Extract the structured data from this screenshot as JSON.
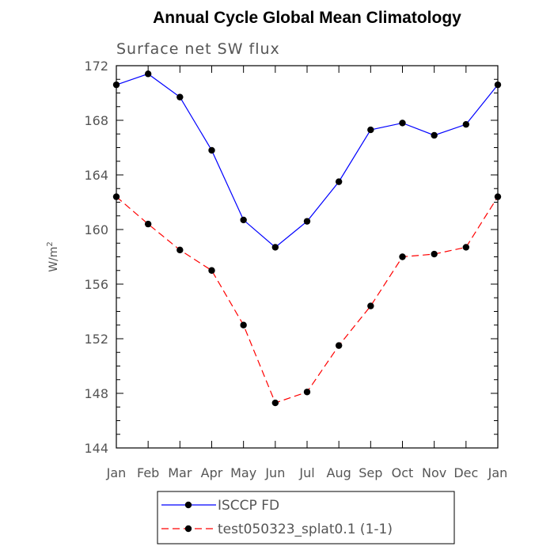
{
  "chart_data": {
    "type": "line",
    "title": "Annual Cycle Global Mean Climatology",
    "subtitle": "Surface net SW flux",
    "ylabel": "W/m",
    "ylabel_sup": "2",
    "xlabel": "",
    "categories": [
      "Jan",
      "Feb",
      "Mar",
      "Apr",
      "May",
      "Jun",
      "Jul",
      "Aug",
      "Sep",
      "Oct",
      "Nov",
      "Dec",
      "Jan"
    ],
    "ylim": [
      144,
      172
    ],
    "yticks": [
      144,
      148,
      152,
      156,
      160,
      164,
      168,
      172
    ],
    "grid": false,
    "legend_position": "bottom",
    "series": [
      {
        "name": "ISCCP FD",
        "color": "#0000ff",
        "line_style": "solid",
        "marker": "filled-circle",
        "values": [
          170.6,
          171.4,
          169.7,
          165.8,
          160.7,
          158.7,
          160.6,
          163.5,
          167.3,
          167.8,
          166.9,
          167.7,
          170.6
        ]
      },
      {
        "name": "test050323_splat0.1 (1-1)",
        "color": "#ff0000",
        "line_style": "dashed",
        "marker": "filled-circle",
        "values": [
          162.4,
          160.4,
          158.5,
          157.0,
          153.0,
          147.3,
          148.1,
          151.5,
          154.4,
          158.0,
          158.2,
          158.7,
          162.4
        ]
      }
    ]
  }
}
